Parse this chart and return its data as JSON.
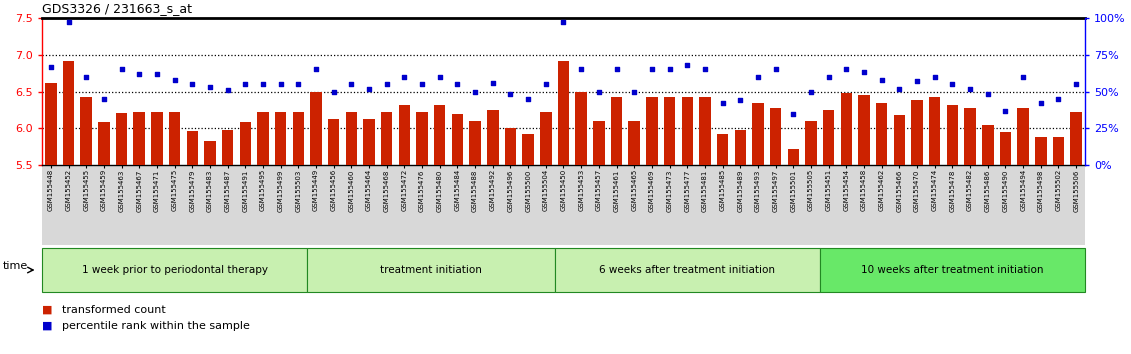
{
  "title": "GDS3326 / 231663_s_at",
  "samples": [
    "GSM155448",
    "GSM155452",
    "GSM155455",
    "GSM155459",
    "GSM155463",
    "GSM155467",
    "GSM155471",
    "GSM155475",
    "GSM155479",
    "GSM155483",
    "GSM155487",
    "GSM155491",
    "GSM155495",
    "GSM155499",
    "GSM155503",
    "GSM155449",
    "GSM155456",
    "GSM155460",
    "GSM155464",
    "GSM155468",
    "GSM155472",
    "GSM155476",
    "GSM155480",
    "GSM155484",
    "GSM155488",
    "GSM155492",
    "GSM155496",
    "GSM155500",
    "GSM155504",
    "GSM155450",
    "GSM155453",
    "GSM155457",
    "GSM155461",
    "GSM155465",
    "GSM155469",
    "GSM155473",
    "GSM155477",
    "GSM155481",
    "GSM155485",
    "GSM155489",
    "GSM155493",
    "GSM155497",
    "GSM155501",
    "GSM155505",
    "GSM155451",
    "GSM155454",
    "GSM155458",
    "GSM155462",
    "GSM155466",
    "GSM155470",
    "GSM155474",
    "GSM155478",
    "GSM155482",
    "GSM155486",
    "GSM155490",
    "GSM155494",
    "GSM155498",
    "GSM155502",
    "GSM155506"
  ],
  "bar_values": [
    6.62,
    6.92,
    6.42,
    6.09,
    6.21,
    6.22,
    6.22,
    6.22,
    5.96,
    5.82,
    5.97,
    6.09,
    6.22,
    6.22,
    6.22,
    6.5,
    6.12,
    6.22,
    6.12,
    6.22,
    6.32,
    6.22,
    6.32,
    6.2,
    6.1,
    6.25,
    6.0,
    5.92,
    6.22,
    6.92,
    6.5,
    6.1,
    6.42,
    6.1,
    6.42,
    6.42,
    6.42,
    6.42,
    5.92,
    5.97,
    6.35,
    6.28,
    5.72,
    6.1,
    6.25,
    6.48,
    6.45,
    6.35,
    6.18,
    6.38,
    6.42,
    6.32,
    6.28,
    6.05,
    5.95,
    6.28,
    5.88,
    5.88,
    6.22
  ],
  "dot_values_pct": [
    67,
    97,
    60,
    45,
    65,
    62,
    62,
    58,
    55,
    53,
    51,
    55,
    55,
    55,
    55,
    65,
    50,
    55,
    52,
    55,
    60,
    55,
    60,
    55,
    50,
    56,
    48,
    45,
    55,
    97,
    65,
    50,
    65,
    50,
    65,
    65,
    68,
    65,
    42,
    44,
    60,
    65,
    35,
    50,
    60,
    65,
    63,
    58,
    52,
    57,
    60,
    55,
    52,
    48,
    37,
    60,
    42,
    45,
    55
  ],
  "groups": [
    {
      "label": "1 week prior to periodontal therapy",
      "start": 0,
      "end": 15
    },
    {
      "label": "treatment initiation",
      "start": 15,
      "end": 29
    },
    {
      "label": "6 weeks after treatment initiation",
      "start": 29,
      "end": 44
    },
    {
      "label": "10 weeks after treatment initiation",
      "start": 44,
      "end": 59
    }
  ],
  "group_colors": [
    "#c8f0b0",
    "#c8f0b0",
    "#c8f0b0",
    "#68e868"
  ],
  "group_border_color": "#228822",
  "ylim_left": [
    5.5,
    7.5
  ],
  "ylim_right": [
    0,
    100
  ],
  "yticks_left": [
    5.5,
    6.0,
    6.5,
    7.0,
    7.5
  ],
  "yticks_right": [
    0,
    25,
    50,
    75,
    100
  ],
  "ytick_labels_right": [
    "0%",
    "25%",
    "50%",
    "75%",
    "100%"
  ],
  "bar_color": "#cc2200",
  "dot_color": "#0000cc",
  "hline_values": [
    6.0,
    6.5,
    7.0
  ],
  "xtick_bg_color": "#d8d8d8"
}
